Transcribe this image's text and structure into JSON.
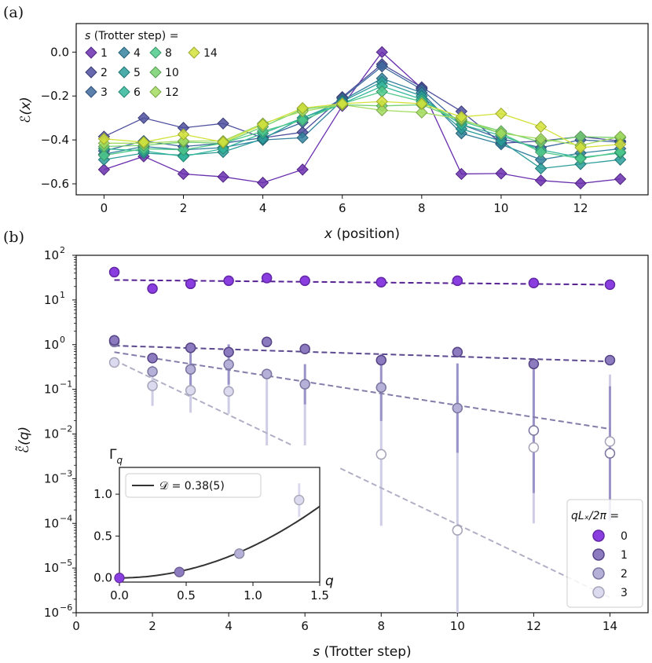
{
  "chart_data": [
    {
      "panel_label": "(a)",
      "type": "line",
      "xlabel_var": "x",
      "xlabel_rest": " (position)",
      "ylabel": "ℰ(x)",
      "xlim": [
        -0.7,
        13.7
      ],
      "ylim": [
        -0.65,
        0.13
      ],
      "xticks": [
        "0",
        "2",
        "4",
        "6",
        "8",
        "10",
        "12"
      ],
      "yticks": [
        "0.0",
        "−0.2",
        "−0.4",
        "−0.6"
      ],
      "legend_title_var": "s",
      "legend_title_rest": " (Trotter step) =",
      "x": [
        0,
        1,
        2,
        3,
        4,
        5,
        6,
        7,
        8,
        9,
        10,
        11,
        12,
        13
      ],
      "series": [
        {
          "name": "1",
          "color": "#6a2fae",
          "values": [
            -0.535,
            -0.475,
            -0.555,
            -0.568,
            -0.595,
            -0.535,
            -0.245,
            0.0,
            -0.165,
            -0.555,
            -0.553,
            -0.585,
            -0.598,
            -0.578
          ]
        },
        {
          "name": "2",
          "color": "#4e4f9e",
          "values": [
            -0.385,
            -0.3,
            -0.345,
            -0.325,
            -0.39,
            -0.365,
            -0.205,
            -0.055,
            -0.16,
            -0.27,
            -0.415,
            -0.405,
            -0.385,
            -0.405
          ]
        },
        {
          "name": "3",
          "color": "#3e6a9e",
          "values": [
            -0.45,
            -0.405,
            -0.43,
            -0.415,
            -0.39,
            -0.32,
            -0.21,
            -0.065,
            -0.17,
            -0.33,
            -0.395,
            -0.435,
            -0.4,
            -0.41
          ]
        },
        {
          "name": "4",
          "color": "#34829f",
          "values": [
            -0.465,
            -0.43,
            -0.445,
            -0.435,
            -0.4,
            -0.39,
            -0.22,
            -0.12,
            -0.185,
            -0.37,
            -0.42,
            -0.49,
            -0.46,
            -0.44
          ]
        },
        {
          "name": "5",
          "color": "#2b9d9a",
          "values": [
            -0.49,
            -0.46,
            -0.47,
            -0.455,
            -0.395,
            -0.3,
            -0.225,
            -0.135,
            -0.2,
            -0.35,
            -0.405,
            -0.53,
            -0.51,
            -0.49
          ]
        },
        {
          "name": "6",
          "color": "#32b79a",
          "values": [
            -0.44,
            -0.45,
            -0.475,
            -0.44,
            -0.37,
            -0.3,
            -0.235,
            -0.155,
            -0.215,
            -0.33,
            -0.38,
            -0.445,
            -0.48,
            -0.46
          ]
        },
        {
          "name": "8",
          "color": "#4fc989",
          "values": [
            -0.47,
            -0.44,
            -0.445,
            -0.415,
            -0.36,
            -0.31,
            -0.235,
            -0.18,
            -0.225,
            -0.315,
            -0.37,
            -0.455,
            -0.485,
            -0.455
          ]
        },
        {
          "name": "10",
          "color": "#76d16f",
          "values": [
            -0.43,
            -0.425,
            -0.41,
            -0.415,
            -0.34,
            -0.26,
            -0.24,
            -0.245,
            -0.24,
            -0.31,
            -0.36,
            -0.41,
            -0.385,
            -0.39
          ]
        },
        {
          "name": "12",
          "color": "#a3dc5e",
          "values": [
            -0.415,
            -0.415,
            -0.405,
            -0.405,
            -0.325,
            -0.27,
            -0.24,
            -0.265,
            -0.275,
            -0.305,
            -0.37,
            -0.395,
            -0.425,
            -0.385
          ]
        },
        {
          "name": "14",
          "color": "#d2e23a",
          "values": [
            -0.395,
            -0.41,
            -0.375,
            -0.41,
            -0.33,
            -0.255,
            -0.235,
            -0.225,
            -0.235,
            -0.295,
            -0.28,
            -0.34,
            -0.435,
            -0.42
          ]
        }
      ]
    },
    {
      "panel_label": "(b)",
      "type": "scatter",
      "yscale": "log",
      "xlabel_var": "s",
      "xlabel_rest": " (Trotter step)",
      "ylabel": "ℰ̃(q)",
      "xlim": [
        0,
        15
      ],
      "ylim_exp": [
        -6,
        2
      ],
      "xticks": [
        "0",
        "2",
        "4",
        "6",
        "8",
        "10",
        "12",
        "14"
      ],
      "yticks_exp": [
        "2",
        "1",
        "0",
        "-1",
        "-2",
        "-3",
        "-4",
        "-5",
        "-6"
      ],
      "ytick_base": "10",
      "legend_title": "qLₓ/2π =",
      "legend_placement": "bottom-right",
      "series": [
        {
          "name": "0",
          "color": "#7b2fd0",
          "face": "#8a3ee0",
          "open": false,
          "fit_start": 28.0,
          "fit_end": 22.0,
          "x": [
            1,
            2,
            3,
            4,
            5,
            6,
            8,
            10,
            12,
            14
          ],
          "y": [
            42,
            18,
            23,
            27,
            31,
            27,
            25,
            27,
            24,
            22
          ],
          "err": [
            0,
            0,
            0,
            0,
            0,
            0,
            0,
            0,
            0,
            0
          ]
        },
        {
          "name": "1",
          "color": "#6b55a8",
          "face": "#8d7bc0",
          "open": false,
          "fit_start": 0.95,
          "fit_end": 0.42,
          "x": [
            1,
            2,
            3,
            4,
            5,
            6,
            8,
            10,
            12,
            14
          ],
          "y": [
            1.25,
            0.5,
            0.85,
            0.68,
            1.15,
            0.8,
            0.45,
            0.68,
            0.37,
            0.45
          ],
          "err": [
            0,
            0,
            0,
            0,
            0,
            0,
            0,
            0,
            0,
            0
          ]
        },
        {
          "name": "2",
          "color": "#9a93c8",
          "face": "#b5b0d8",
          "open": false,
          "fit_start": 0.68,
          "fit_end": 0.013,
          "x": [
            1,
            2,
            3,
            4,
            5,
            6,
            8,
            10,
            12,
            14
          ],
          "y": [
            1.15,
            0.25,
            0.28,
            0.36,
            0.22,
            0.13,
            0.11,
            0.038,
            0.012,
            0.0037
          ],
          "err": [
            0,
            0,
            0.55,
            0.45,
            0,
            0.45,
            0.75,
            1.0,
            1.4,
            1.5
          ]
        },
        {
          "name": "3",
          "color": "#cfcde6",
          "face": "#dcdaee",
          "open": false,
          "fit_start": 0.45,
          "fit_end": 2.2e-06,
          "x": [
            1,
            2,
            3,
            4,
            5,
            6,
            8,
            10,
            12,
            14
          ],
          "y": [
            0.4,
            0.12,
            0.095,
            0.09,
            0.0042,
            0.004,
            0.0035,
            7e-05,
            0.005,
            0.0068
          ],
          "err": [
            0,
            0.45,
            0.5,
            0.5,
            1.6,
            1.6,
            1.6,
            3.0,
            1.7,
            1.5
          ]
        }
      ],
      "inset": {
        "type": "scatter",
        "ylabel": "Γ_q",
        "xlabel": "q",
        "xlim": [
          0,
          1.5
        ],
        "ylim": [
          -0.05,
          1.32
        ],
        "xticks": [
          "0.0",
          "0.5",
          "1.0",
          "1.5"
        ],
        "yticks": [
          "0.0",
          "0.5",
          "1.0"
        ],
        "legend": "𝒟 = 0.38(5)",
        "fit_coefficient": 0.38,
        "points": [
          {
            "q": 0.0,
            "gamma": 0.0,
            "err": 0.03,
            "color": "#8a3ee0"
          },
          {
            "q": 0.449,
            "gamma": 0.07,
            "err": 0.03,
            "color": "#8d7bc0"
          },
          {
            "q": 0.898,
            "gamma": 0.29,
            "err": 0.05,
            "color": "#b5b0d8"
          },
          {
            "q": 1.346,
            "gamma": 0.93,
            "err": 0.2,
            "color": "#dcdaee"
          }
        ]
      }
    }
  ]
}
